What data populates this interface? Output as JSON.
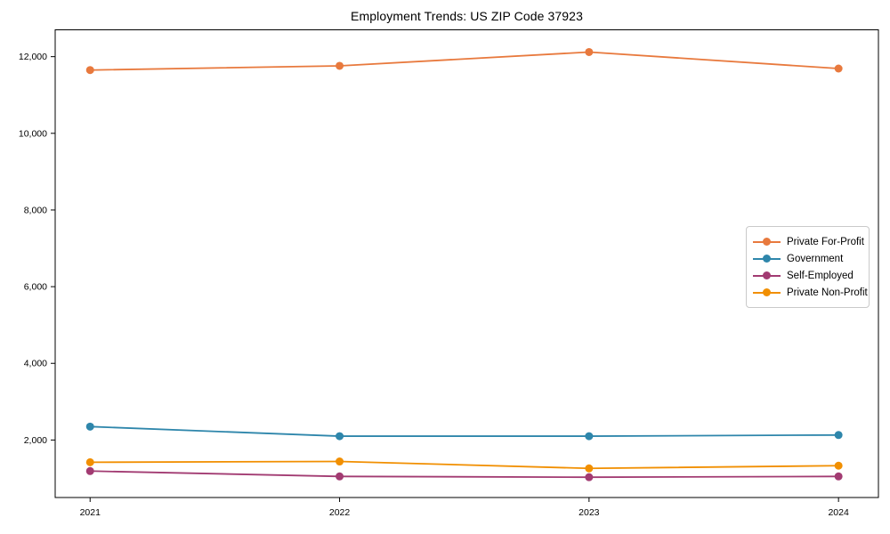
{
  "title": "Employment Trends: US ZIP Code 37923",
  "chart_data": {
    "type": "line",
    "title": "Employment Trends: US ZIP Code 37923",
    "xlabel": "",
    "ylabel": "",
    "x": [
      2021,
      2022,
      2023,
      2024
    ],
    "x_tick_labels": [
      "2021",
      "2022",
      "2023",
      "2024"
    ],
    "series": [
      {
        "name": "Private For-Profit",
        "color": "#E8793D",
        "values": [
          11650,
          11760,
          12120,
          11690
        ]
      },
      {
        "name": "Government",
        "color": "#2E86AB",
        "values": [
          2350,
          2100,
          2100,
          2130
        ]
      },
      {
        "name": "Self-Employed",
        "color": "#A23B72",
        "values": [
          1190,
          1050,
          1030,
          1050
        ]
      },
      {
        "name": "Private Non-Profit",
        "color": "#F18F01",
        "values": [
          1420,
          1440,
          1260,
          1330
        ]
      }
    ],
    "yticks": {
      "values": [
        2000,
        4000,
        6000,
        8000,
        10000,
        12000
      ],
      "labels": [
        "2,000",
        "4,000",
        "6,000",
        "8,000",
        "10,000",
        "12,000"
      ]
    },
    "ylim": [
      500,
      12700
    ],
    "xlim": [
      2020.86,
      2024.16
    ],
    "grid": false,
    "legend_position": "center-right",
    "marker": "circle",
    "line_width": 1.8,
    "marker_radius": 4.5,
    "axis_color": "#000000",
    "background_color": "#ffffff"
  }
}
